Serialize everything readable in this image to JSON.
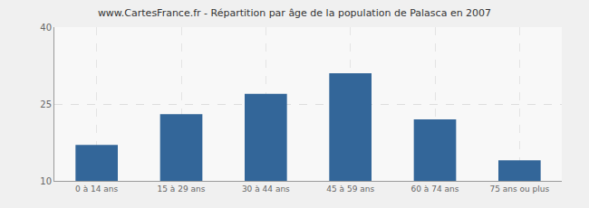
{
  "chart_data": {
    "type": "bar",
    "title": "www.CartesFrance.fr - Répartition par âge de la population de Palasca en 2007",
    "categories": [
      "0 à 14 ans",
      "15 à 29 ans",
      "30 à 44 ans",
      "45 à 59 ans",
      "60 à 74 ans",
      "75 ans ou plus"
    ],
    "values": [
      17,
      23,
      27,
      31,
      22,
      14
    ],
    "color": "#336699",
    "ylim": [
      10,
      40
    ],
    "yticks": [
      10,
      25,
      40
    ],
    "grid": true
  }
}
